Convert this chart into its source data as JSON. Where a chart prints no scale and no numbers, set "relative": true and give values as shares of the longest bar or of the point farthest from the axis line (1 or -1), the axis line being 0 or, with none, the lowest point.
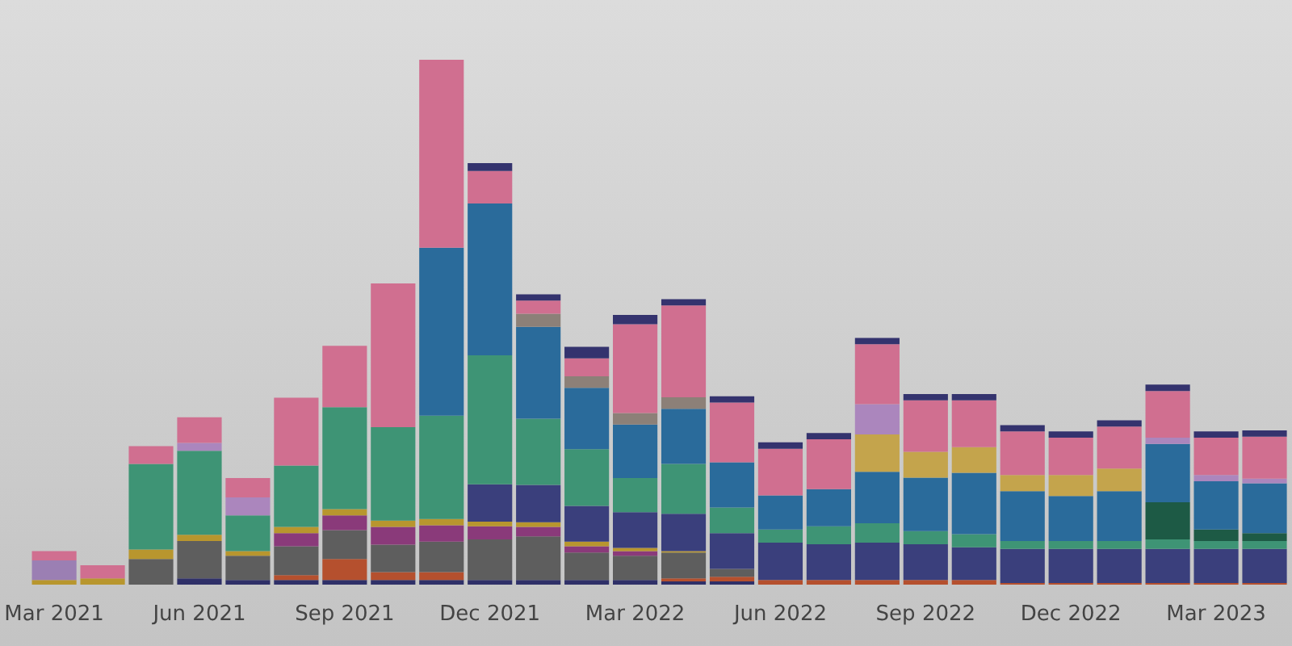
{
  "chart_data": {
    "type": "bar",
    "stacked": true,
    "relative": true,
    "categories": [
      "Mar 2021",
      null,
      null,
      "Jun 2021",
      null,
      null,
      "Sep 2021",
      null,
      null,
      "Dec 2021",
      null,
      null,
      "Mar 2022",
      null,
      null,
      "Jun 2022",
      null,
      null,
      "Sep 2022",
      null,
      null,
      "Dec 2022",
      null,
      null,
      "Mar 2023",
      null
    ],
    "series": [
      {
        "color": "#2f3068",
        "values": [
          null,
          null,
          null,
          0.012,
          0.009,
          0.009,
          0.009,
          0.009,
          0.009,
          0.009,
          0.009,
          0.009,
          0.009,
          0.006,
          0.006,
          null,
          null,
          null,
          null,
          null,
          null,
          null,
          null,
          null,
          null,
          null
        ]
      },
      {
        "color": "#b5502e",
        "values": [
          null,
          null,
          null,
          null,
          null,
          0.009,
          0.04,
          0.015,
          0.015,
          null,
          null,
          null,
          null,
          0.006,
          0.009,
          0.009,
          0.009,
          0.009,
          0.009,
          0.009,
          0.003,
          0.003,
          0.003,
          0.003,
          0.003,
          0.003
        ]
      },
      {
        "color": "#5e5e5e",
        "values": [
          null,
          null,
          0.049,
          0.071,
          0.046,
          0.055,
          0.055,
          0.052,
          0.058,
          0.077,
          0.083,
          0.052,
          0.046,
          0.049,
          0.015,
          null,
          null,
          null,
          null,
          null,
          null,
          null,
          null,
          null,
          null,
          null
        ]
      },
      {
        "color": "#8a3a7a",
        "values": [
          null,
          null,
          null,
          null,
          null,
          0.025,
          0.028,
          0.034,
          0.031,
          0.025,
          0.018,
          0.012,
          0.009,
          null,
          null,
          null,
          null,
          null,
          null,
          null,
          null,
          null,
          null,
          null,
          null,
          null
        ]
      },
      {
        "color": "#b8962e",
        "values": [
          0.009,
          0.012,
          0.018,
          0.012,
          0.009,
          0.012,
          0.012,
          0.012,
          0.012,
          0.009,
          0.009,
          0.009,
          0.006,
          0.003,
          null,
          null,
          null,
          null,
          null,
          null,
          null,
          null,
          null,
          null,
          null,
          null
        ]
      },
      {
        "color": "#9b7fb3",
        "values": [
          0.037,
          null,
          null,
          null,
          null,
          null,
          null,
          null,
          null,
          null,
          null,
          null,
          null,
          null,
          null,
          null,
          null,
          null,
          null,
          null,
          null,
          null,
          null,
          null,
          null,
          null
        ]
      },
      {
        "color": "#3a3f7c",
        "values": [
          null,
          null,
          null,
          null,
          null,
          null,
          null,
          null,
          null,
          0.071,
          0.071,
          0.068,
          0.068,
          0.071,
          0.068,
          0.071,
          0.068,
          0.071,
          0.068,
          0.062,
          0.065,
          0.065,
          0.065,
          0.065,
          0.065,
          0.065
        ]
      },
      {
        "color": "#3e9475",
        "values": [
          null,
          null,
          0.163,
          0.16,
          0.068,
          0.117,
          0.194,
          0.178,
          0.197,
          0.246,
          0.126,
          0.108,
          0.065,
          0.095,
          0.049,
          0.025,
          0.034,
          0.037,
          0.025,
          0.025,
          0.015,
          0.015,
          0.015,
          0.018,
          0.015,
          0.015
        ]
      },
      {
        "color": "#1d5a45",
        "values": [
          null,
          null,
          null,
          null,
          null,
          null,
          null,
          null,
          null,
          null,
          null,
          null,
          null,
          null,
          null,
          null,
          null,
          null,
          null,
          null,
          null,
          null,
          null,
          0.071,
          0.022,
          0.015
        ]
      },
      {
        "color": "#2a6b9b",
        "values": [
          null,
          null,
          null,
          null,
          null,
          null,
          null,
          null,
          0.32,
          0.289,
          0.175,
          0.117,
          0.102,
          0.105,
          0.086,
          0.065,
          0.071,
          0.098,
          0.102,
          0.117,
          0.095,
          0.086,
          0.095,
          0.111,
          0.092,
          0.095
        ]
      },
      {
        "color": "#c4a44c",
        "values": [
          null,
          null,
          null,
          null,
          null,
          null,
          null,
          null,
          null,
          null,
          null,
          null,
          null,
          null,
          null,
          null,
          null,
          0.071,
          0.049,
          0.049,
          0.031,
          0.04,
          0.043,
          null,
          null,
          null
        ]
      },
      {
        "color": "#8c8078",
        "values": [
          null,
          null,
          null,
          null,
          null,
          null,
          null,
          null,
          null,
          null,
          0.025,
          0.022,
          0.022,
          0.022,
          null,
          null,
          null,
          null,
          null,
          null,
          null,
          null,
          null,
          null,
          null,
          null
        ]
      },
      {
        "color": "#ab86bd",
        "values": [
          null,
          null,
          null,
          0.015,
          0.034,
          null,
          null,
          null,
          null,
          null,
          null,
          null,
          null,
          null,
          null,
          null,
          null,
          0.058,
          null,
          null,
          null,
          null,
          null,
          0.012,
          0.012,
          0.009
        ]
      },
      {
        "color": "#d06f90",
        "values": [
          0.018,
          0.025,
          0.034,
          0.049,
          0.037,
          0.129,
          0.117,
          0.274,
          0.358,
          0.062,
          0.025,
          0.034,
          0.169,
          0.175,
          0.114,
          0.089,
          0.095,
          0.114,
          0.098,
          0.089,
          0.083,
          0.071,
          0.08,
          0.089,
          0.071,
          0.08
        ]
      },
      {
        "color": "#34336e",
        "values": [
          null,
          null,
          null,
          null,
          null,
          null,
          null,
          null,
          null,
          0.015,
          0.012,
          0.022,
          0.018,
          0.012,
          0.012,
          0.012,
          0.012,
          0.012,
          0.012,
          0.012,
          0.012,
          0.012,
          0.012,
          0.012,
          0.012,
          0.012
        ]
      }
    ]
  }
}
